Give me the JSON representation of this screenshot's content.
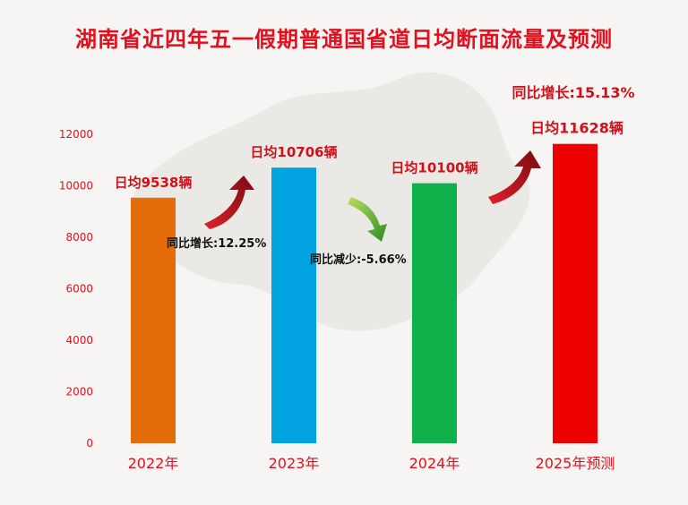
{
  "chart_data": {
    "type": "bar",
    "title": "湖南省近四年五一假期普通国省道日均断面流量及预测",
    "categories": [
      "2022年",
      "2023年",
      "2024年",
      "2025年预测"
    ],
    "values": [
      9538,
      10706,
      10100,
      11628
    ],
    "value_labels": [
      "日均9538辆",
      "日均10706辆",
      "日均10100辆",
      "日均11628辆"
    ],
    "change_labels": [
      "同比增长:12.25%",
      "同比减少:-5.66%",
      "同比增长:15.13%"
    ],
    "yticks": [
      0,
      2000,
      4000,
      6000,
      8000,
      10000,
      12000
    ],
    "ylim": [
      0,
      12000
    ],
    "grid": false,
    "colors": {
      "bars": [
        "#e46c0a",
        "#00a3e0",
        "#10b04a",
        "#ee0000"
      ],
      "title": "#e0101e",
      "axis_text": "#e0101e",
      "label_text": "#d0101a",
      "change_text": "#111111",
      "arrow_up": "#b0101a",
      "arrow_down": "#43a02c"
    }
  }
}
